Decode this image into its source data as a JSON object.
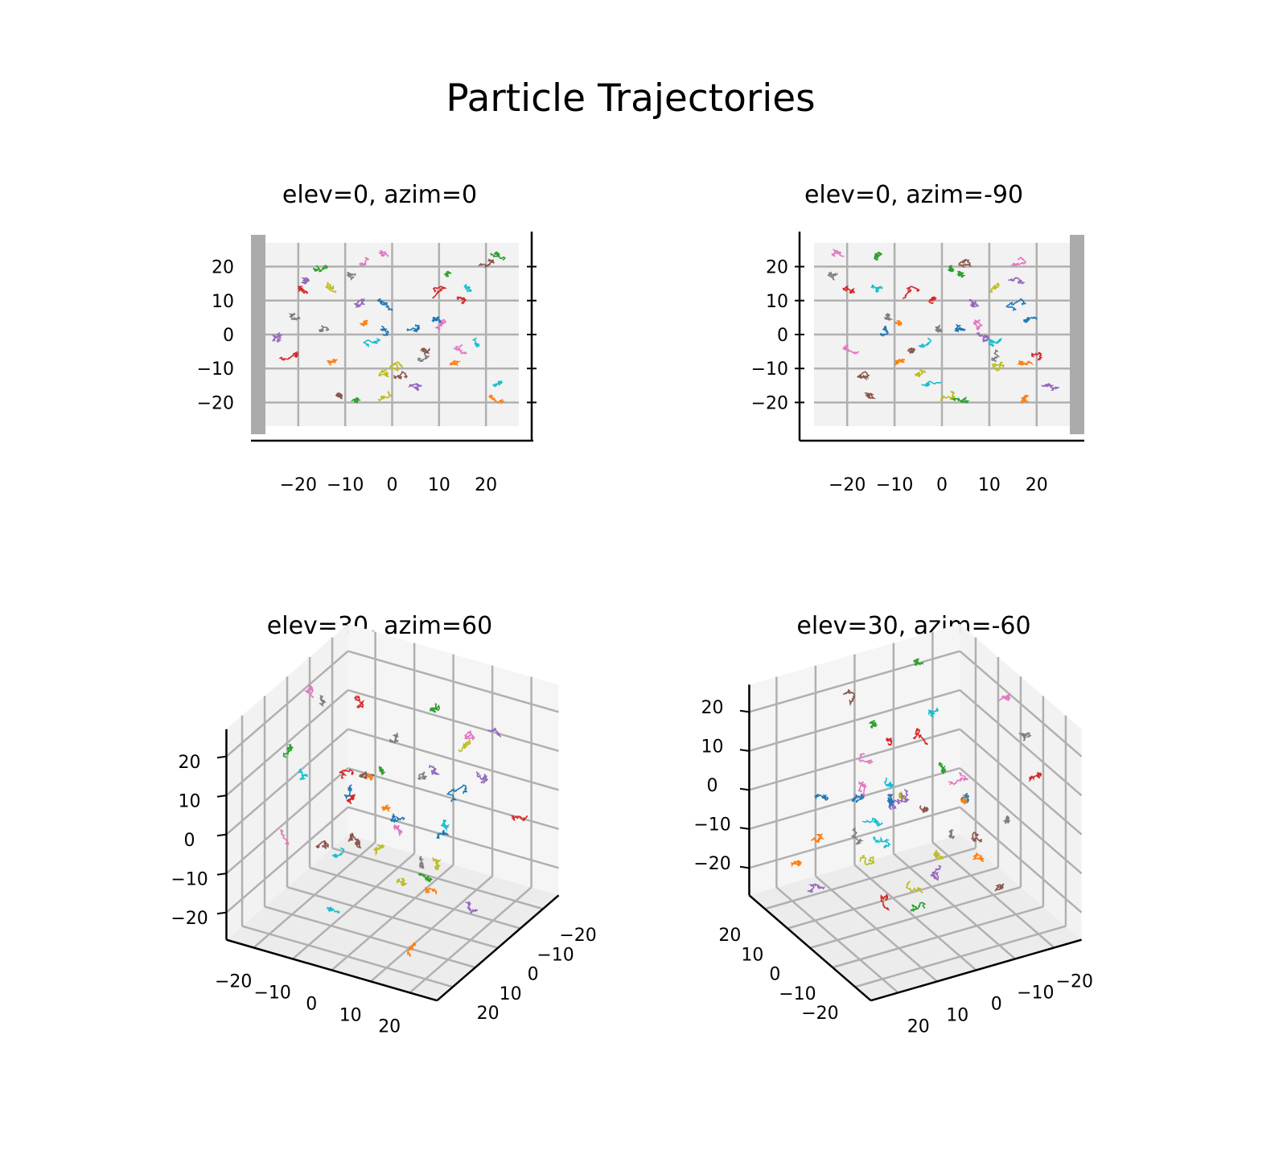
{
  "figure": {
    "title": "Particle Trajectories"
  },
  "chart_data": [
    {
      "type": "line3d",
      "title": "elev=0, azim=0",
      "view": {
        "elev": 0,
        "azim": 0
      },
      "visible_axes": [
        "y",
        "z"
      ],
      "y_ticks": [
        "−20",
        "−10",
        "0",
        "10",
        "20"
      ],
      "z_ticks": [
        "−20",
        "−10",
        "0",
        "10",
        "20"
      ],
      "lim": [
        -27,
        27
      ],
      "grid": true
    },
    {
      "type": "line3d",
      "title": "elev=0, azim=-90",
      "view": {
        "elev": 0,
        "azim": -90
      },
      "visible_axes": [
        "x",
        "z"
      ],
      "x_ticks": [
        "−20",
        "−10",
        "0",
        "10",
        "20"
      ],
      "z_ticks": [
        "−20",
        "−10",
        "0",
        "10",
        "20"
      ],
      "lim": [
        -27,
        27
      ],
      "grid": true
    },
    {
      "type": "line3d",
      "title": "elev=30, azim=60",
      "view": {
        "elev": 30,
        "azim": 60
      },
      "visible_axes": [
        "x",
        "y",
        "z"
      ],
      "x_ticks": [
        "−20",
        "−10",
        "0",
        "10",
        "20"
      ],
      "y_ticks": [
        "−20",
        "−10",
        "0",
        "10",
        "20"
      ],
      "z_ticks": [
        "−20",
        "−10",
        "0",
        "10",
        "20"
      ],
      "lim": [
        -27,
        27
      ],
      "grid": true
    },
    {
      "type": "line3d",
      "title": "elev=30, azim=-60",
      "view": {
        "elev": 30,
        "azim": -60
      },
      "visible_axes": [
        "x",
        "y",
        "z"
      ],
      "x_ticks": [
        "−20",
        "−10",
        "0",
        "10",
        "20"
      ],
      "y_ticks": [
        "−20",
        "−10",
        "0",
        "10",
        "20"
      ],
      "z_ticks": [
        "−20",
        "−10",
        "0",
        "10",
        "20"
      ],
      "lim": [
        -27,
        27
      ],
      "grid": true
    }
  ],
  "trajectories": {
    "count": 40,
    "color_cycle": [
      "#1f77b4",
      "#ff7f0e",
      "#2ca02c",
      "#d62728",
      "#9467bd",
      "#8c564b",
      "#e377c2",
      "#7f7f7f",
      "#bcbd22",
      "#17becf"
    ],
    "start_points": [
      [
        -12,
        -2,
        0
      ],
      [
        18,
        21,
        -18
      ],
      [
        5,
        -8,
        -20
      ],
      [
        -8,
        9,
        11
      ],
      [
        14,
        -18,
        16
      ],
      [
        6,
        19,
        21
      ],
      [
        -20,
        15,
        -3
      ],
      [
        -11,
        -21,
        6
      ],
      [
        -5,
        -1,
        -11
      ],
      [
        12,
        -3,
        -2
      ],
      [
        3,
        5,
        3
      ],
      [
        17,
        13,
        -8
      ],
      [
        2,
        -16,
        20
      ],
      [
        -2,
        15,
        9
      ],
      [
        21,
        4,
        -15
      ],
      [
        -16,
        -11,
        -18
      ],
      [
        8,
        10,
        2
      ],
      [
        -22,
        -8,
        18
      ],
      [
        10,
        -12,
        13
      ],
      [
        -4,
        22,
        -15
      ],
      [
        15,
        0,
        7
      ],
      [
        -9,
        -6,
        3
      ],
      [
        -14,
        21,
        24
      ],
      [
        19,
        -20,
        -6
      ],
      [
        7,
        -6,
        10
      ],
      [
        -17,
        3,
        -12
      ],
      [
        -21,
        -1,
        23
      ],
      [
        11,
        6,
        -7
      ],
      [
        0,
        -3,
        -19
      ],
      [
        -3,
        18,
        -1
      ],
      [
        20,
        10,
        5
      ],
      [
        -10,
        -13,
        -9
      ],
      [
        4,
        12,
        17
      ],
      [
        -19,
        -19,
        13
      ],
      [
        9,
        -24,
        -2
      ],
      [
        -6,
        8,
        -4
      ],
      [
        16,
        -5,
        22
      ],
      [
        -1,
        -14,
        1
      ],
      [
        13,
        2,
        -10
      ],
      [
        -15,
        16,
        14
      ]
    ],
    "spread": 2.0,
    "steps": 28
  }
}
